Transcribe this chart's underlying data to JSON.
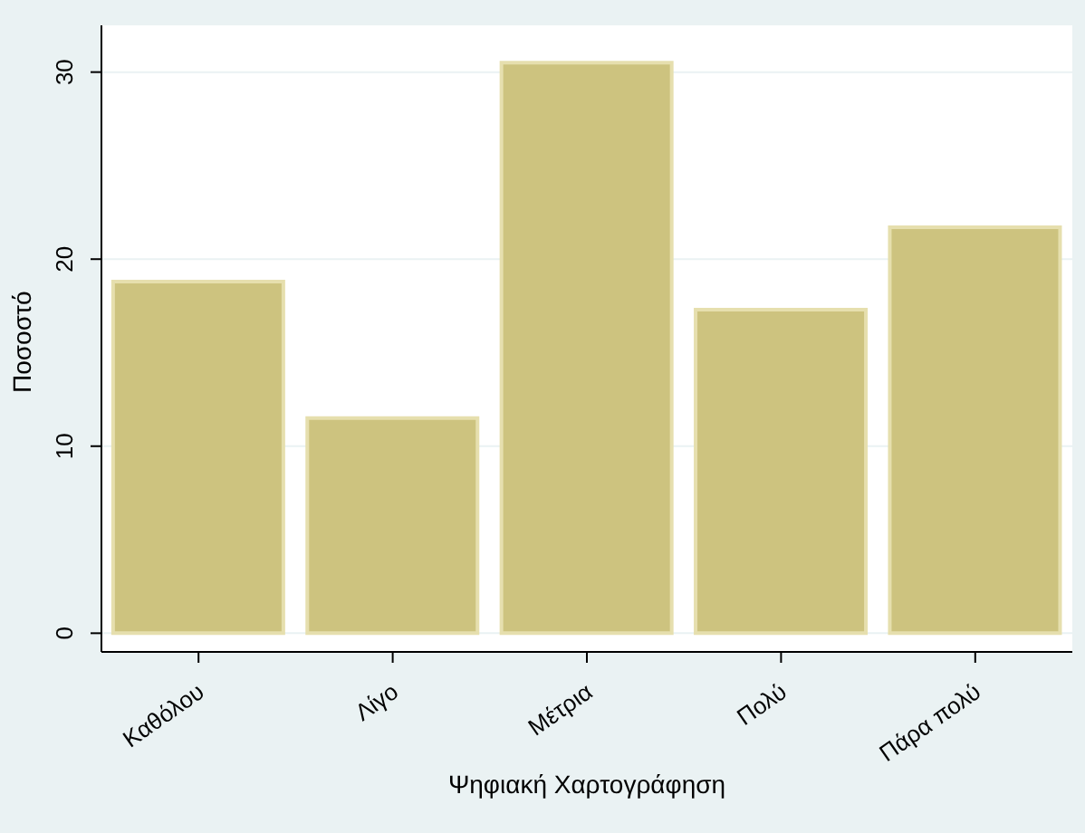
{
  "chart_data": {
    "type": "bar",
    "xlabel": "Ψηφιακή Χαρτογράφηση",
    "ylabel": "Ποσοστό",
    "categories": [
      "Καθόλου",
      "Λίγο",
      "Μέτρια",
      "Πολύ",
      "Πάρα πολύ"
    ],
    "values": [
      18.8,
      11.5,
      30.5,
      17.3,
      21.7
    ],
    "color": "#cdc37f",
    "ylim": [
      -1,
      32.5
    ],
    "yticks": [
      0,
      10,
      20,
      30
    ],
    "grid": "y"
  }
}
